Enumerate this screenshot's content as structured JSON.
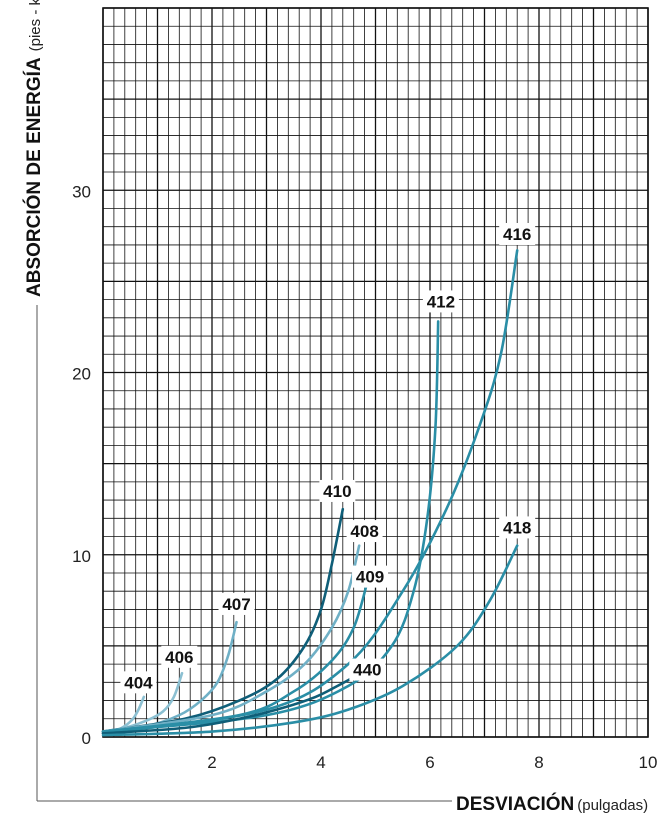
{
  "chart_data": {
    "type": "line",
    "xlabel": "DESVIACIÓN",
    "xlabel_unit": "(pulgadas)",
    "ylabel": "ABSORCIÓN DE ENERGÍA",
    "ylabel_unit": "(pies - kips)",
    "xlim": [
      0,
      10
    ],
    "ylim": [
      0,
      40
    ],
    "xticks": [
      "2",
      "4",
      "6",
      "8",
      "10"
    ],
    "yticks": [
      "0",
      "10",
      "20",
      "30"
    ],
    "grid": true,
    "colors": {
      "dark": "#0f5e78",
      "mid": "#2a8ea6",
      "light": "#6fb0c6",
      "lighter": "#8cc0d2",
      "grid": "#111111"
    },
    "series": [
      {
        "name": "404",
        "color": "#8cc0d2",
        "points": [
          [
            0,
            0.2
          ],
          [
            0.2,
            0.3
          ],
          [
            0.4,
            0.6
          ],
          [
            0.55,
            1.0
          ],
          [
            0.65,
            1.5
          ],
          [
            0.75,
            2.2
          ]
        ]
      },
      {
        "name": "406",
        "color": "#8cc0d2",
        "points": [
          [
            0,
            0.3
          ],
          [
            0.4,
            0.5
          ],
          [
            0.8,
            0.9
          ],
          [
            1.1,
            1.4
          ],
          [
            1.3,
            2.2
          ],
          [
            1.45,
            3.5
          ]
        ]
      },
      {
        "name": "407",
        "color": "#6fb0c6",
        "points": [
          [
            0,
            0.3
          ],
          [
            0.8,
            0.6
          ],
          [
            1.4,
            1.2
          ],
          [
            1.8,
            2.0
          ],
          [
            2.1,
            3.0
          ],
          [
            2.3,
            4.5
          ],
          [
            2.45,
            6.3
          ]
        ]
      },
      {
        "name": "410",
        "color": "#0f5e78",
        "points": [
          [
            0,
            0.3
          ],
          [
            1.5,
            1.0
          ],
          [
            2.5,
            2.0
          ],
          [
            3.2,
            3.2
          ],
          [
            3.7,
            5.0
          ],
          [
            4.0,
            7.0
          ],
          [
            4.2,
            9.5
          ],
          [
            4.4,
            12.5
          ]
        ]
      },
      {
        "name": "408",
        "color": "#6fb0c6",
        "points": [
          [
            0,
            0.3
          ],
          [
            2.0,
            1.2
          ],
          [
            3.0,
            2.5
          ],
          [
            3.7,
            4.0
          ],
          [
            4.2,
            6.0
          ],
          [
            4.5,
            8.0
          ],
          [
            4.7,
            10.5
          ]
        ]
      },
      {
        "name": "409",
        "color": "#2a8ea6",
        "points": [
          [
            0,
            0.3
          ],
          [
            2.5,
            1.2
          ],
          [
            3.5,
            2.5
          ],
          [
            4.2,
            4.2
          ],
          [
            4.6,
            6.0
          ],
          [
            4.85,
            8.5
          ]
        ]
      },
      {
        "name": "412",
        "color": "#2a8ea6",
        "points": [
          [
            0,
            0.3
          ],
          [
            3.0,
            1.2
          ],
          [
            4.5,
            2.8
          ],
          [
            5.3,
            5.0
          ],
          [
            5.7,
            8.0
          ],
          [
            5.95,
            12.0
          ],
          [
            6.1,
            17.0
          ],
          [
            6.15,
            22.8
          ]
        ]
      },
      {
        "name": "416",
        "color": "#2a8ea6",
        "points": [
          [
            0,
            0.2
          ],
          [
            3.0,
            1.5
          ],
          [
            4.5,
            4.0
          ],
          [
            5.5,
            8.0
          ],
          [
            6.3,
            12.5
          ],
          [
            6.9,
            17.0
          ],
          [
            7.3,
            21.0
          ],
          [
            7.6,
            26.7
          ]
        ]
      },
      {
        "name": "440",
        "color": "#0f5e78",
        "points": [
          [
            0,
            0.2
          ],
          [
            1.5,
            0.5
          ],
          [
            2.5,
            1.0
          ],
          [
            3.3,
            1.6
          ],
          [
            3.9,
            2.2
          ],
          [
            4.3,
            2.8
          ],
          [
            4.55,
            3.2
          ]
        ]
      },
      {
        "name": "418",
        "color": "#2a8ea6",
        "points": [
          [
            0,
            0.1
          ],
          [
            2.0,
            0.3
          ],
          [
            3.5,
            0.8
          ],
          [
            4.5,
            1.5
          ],
          [
            5.5,
            2.8
          ],
          [
            6.5,
            5.0
          ],
          [
            7.1,
            7.5
          ],
          [
            7.6,
            10.5
          ]
        ]
      }
    ],
    "labels": [
      {
        "series": "404",
        "text": "404",
        "x": 0.65,
        "y": 3.0
      },
      {
        "series": "406",
        "text": "406",
        "x": 1.4,
        "y": 4.4
      },
      {
        "series": "407",
        "text": "407",
        "x": 2.45,
        "y": 7.3
      },
      {
        "series": "410",
        "text": "410",
        "x": 4.3,
        "y": 13.5
      },
      {
        "series": "408",
        "text": "408",
        "x": 4.8,
        "y": 11.3
      },
      {
        "series": "409",
        "text": "409",
        "x": 4.9,
        "y": 8.8
      },
      {
        "series": "412",
        "text": "412",
        "x": 6.2,
        "y": 23.9
      },
      {
        "series": "416",
        "text": "416",
        "x": 7.6,
        "y": 27.6
      },
      {
        "series": "440",
        "text": "440",
        "x": 4.85,
        "y": 3.7
      },
      {
        "series": "418",
        "text": "418",
        "x": 7.6,
        "y": 11.5
      }
    ]
  }
}
